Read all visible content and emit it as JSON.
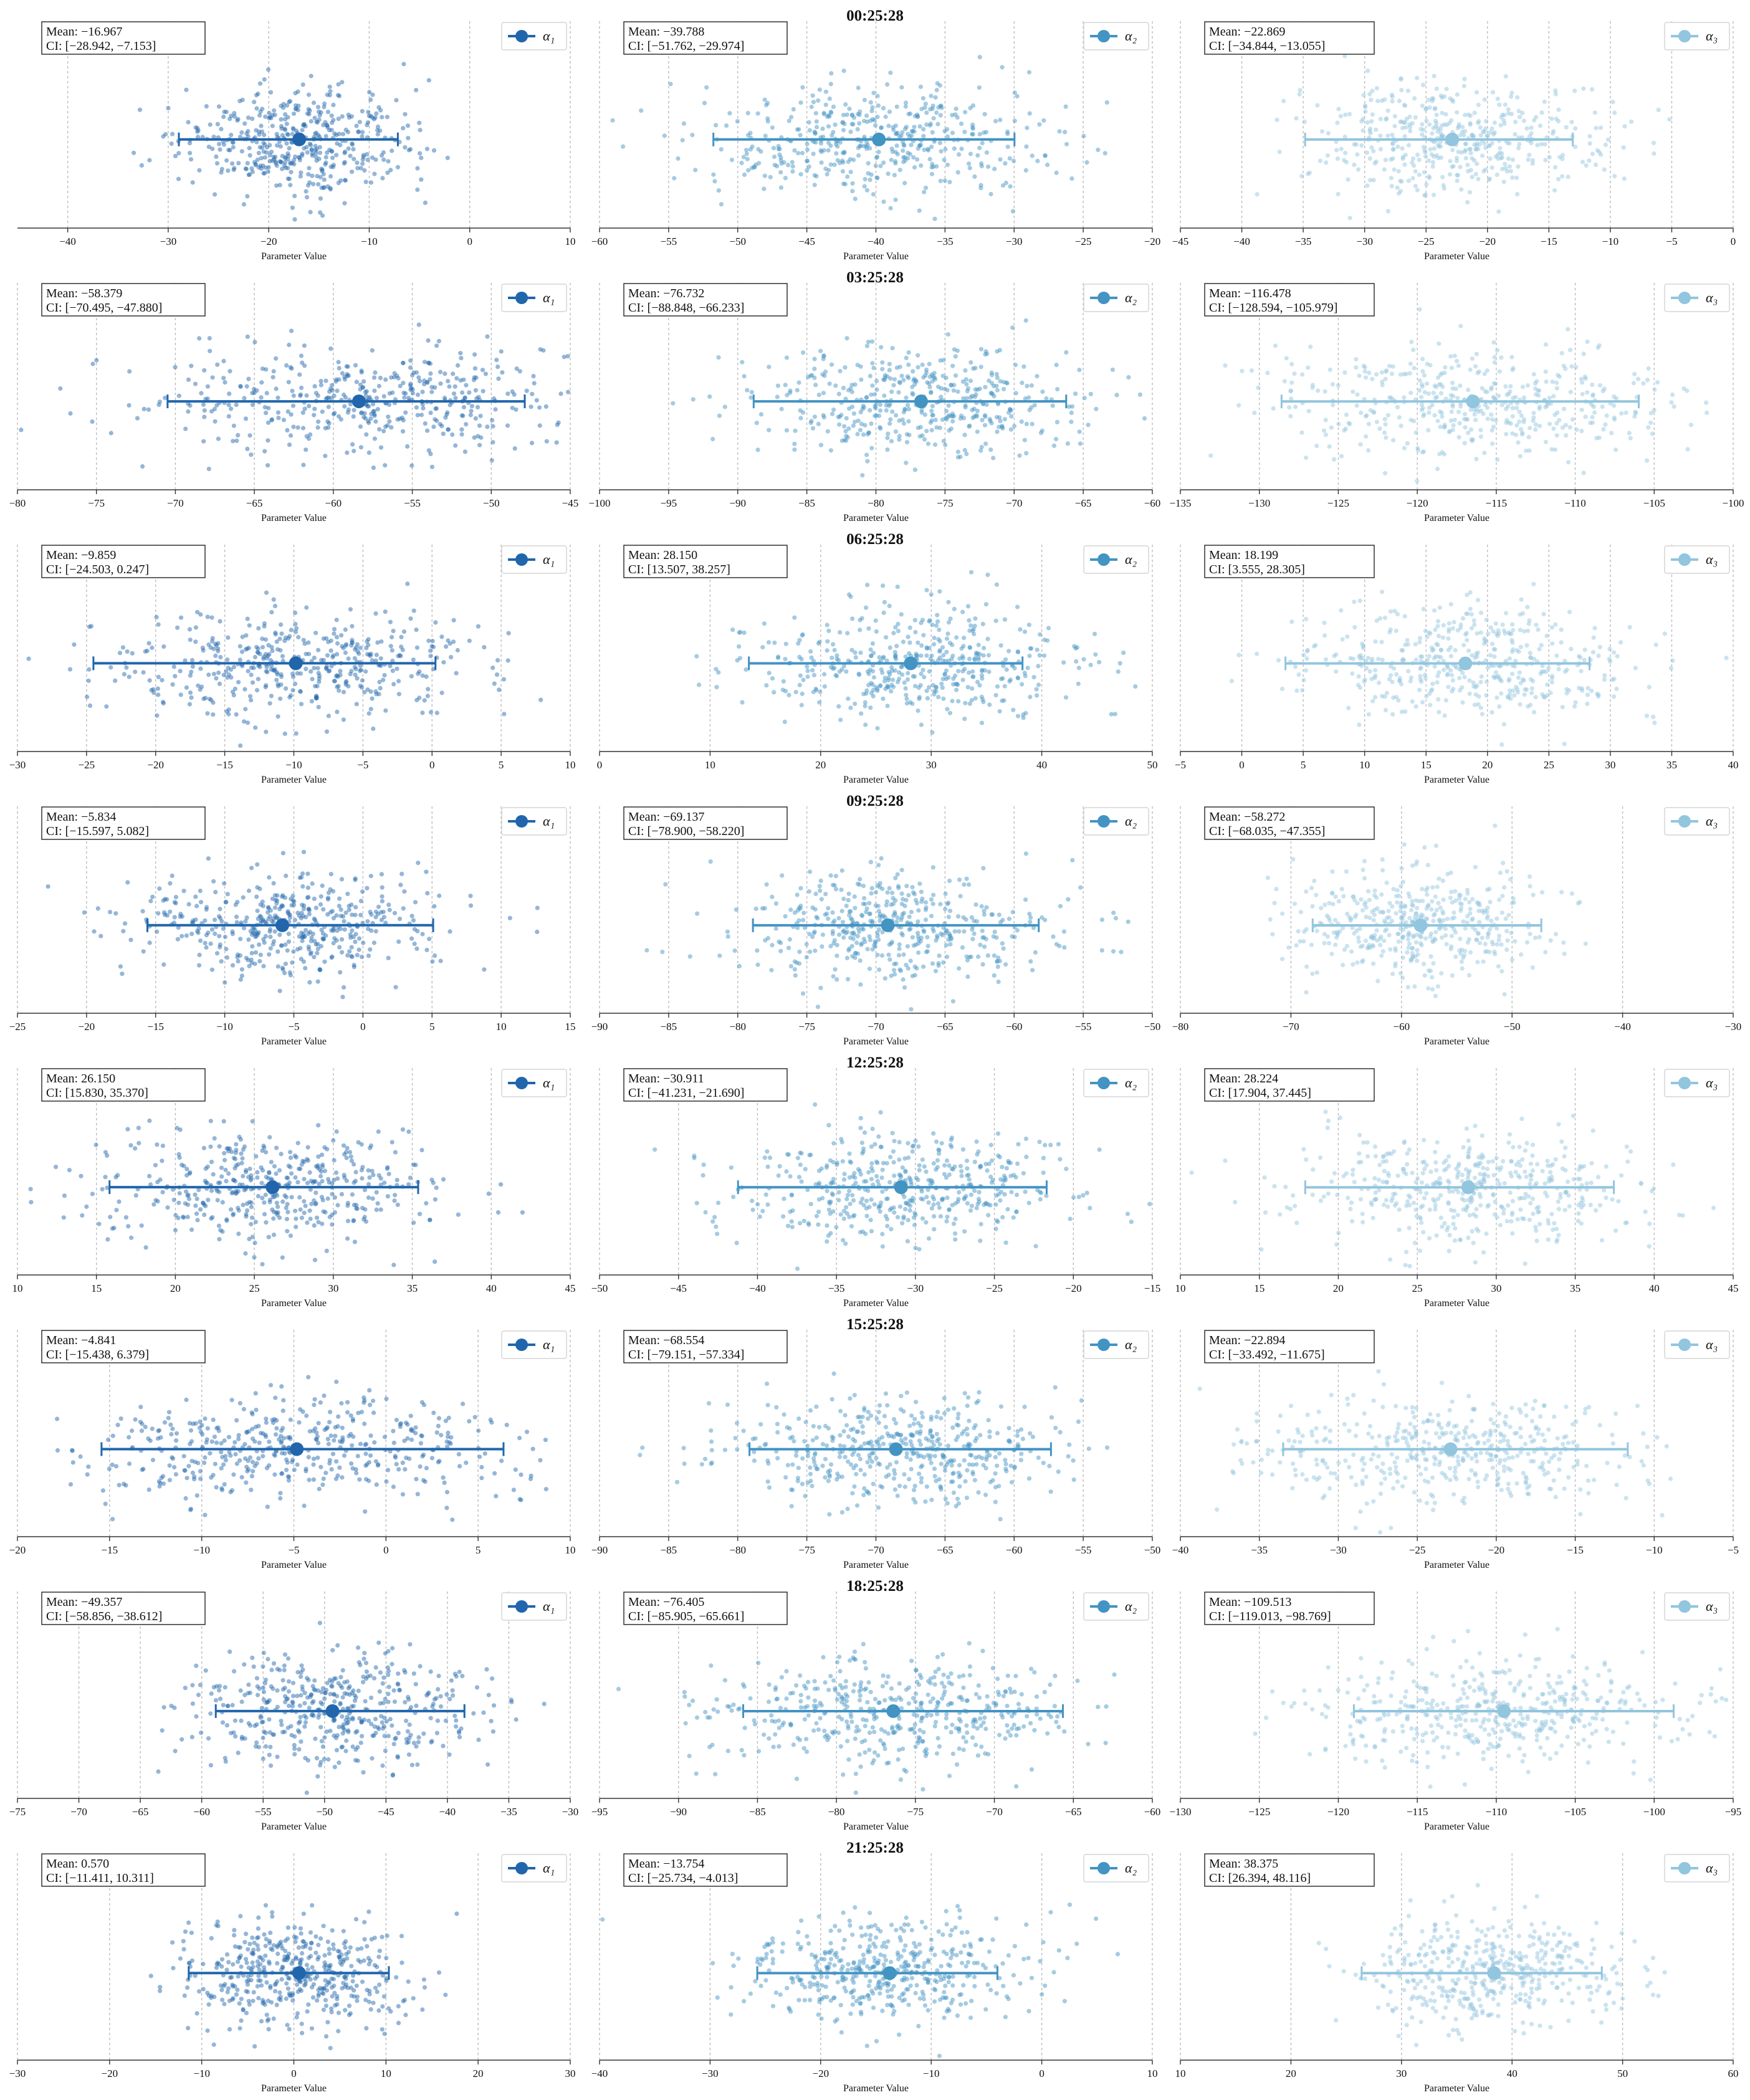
{
  "colors": {
    "alpha1": "#2166ac",
    "alpha2": "#4393c3",
    "alpha3": "#92c5de",
    "axis": "#333333",
    "grid": "#bdbdbd",
    "text": "#111111"
  },
  "labels": {
    "xlabel": "Parameter Value",
    "mean_prefix": "Mean: ",
    "ci_prefix": "CI: "
  },
  "legend_labels": [
    "α₁",
    "α₂",
    "α₃"
  ],
  "chart_data": [
    {
      "type": "scatter",
      "row_title": "00:25:28",
      "panels": [
        {
          "param": "α₁",
          "mean": "−16.967",
          "ci": "[−28.942, −7.153]",
          "mean_value": -16.967,
          "ci_value": [
            -28.942,
            -7.153
          ],
          "xlim": [
            -45,
            10
          ],
          "ticks": [
            -40,
            -30,
            -20,
            -10,
            0,
            10
          ]
        },
        {
          "param": "α₂",
          "mean": "−39.788",
          "ci": "[−51.762, −29.974]",
          "mean_value": -39.788,
          "ci_value": [
            -51.762,
            -29.974
          ],
          "xlim": [
            -60,
            -20
          ],
          "ticks": [
            -60,
            -55,
            -50,
            -45,
            -40,
            -35,
            -30,
            -25,
            -20
          ]
        },
        {
          "param": "α₃",
          "mean": "−22.869",
          "ci": "[−34.844, −13.055]",
          "mean_value": -22.869,
          "ci_value": [
            -34.844,
            -13.055
          ],
          "xlim": [
            -45,
            0
          ],
          "ticks": [
            -45,
            -40,
            -35,
            -30,
            -25,
            -20,
            -15,
            -10,
            -5,
            0
          ]
        }
      ]
    },
    {
      "type": "scatter",
      "row_title": "03:25:28",
      "panels": [
        {
          "param": "α₁",
          "mean": "−58.379",
          "ci": "[−70.495, −47.880]",
          "mean_value": -58.379,
          "ci_value": [
            -70.495,
            -47.88
          ],
          "xlim": [
            -80,
            -45
          ],
          "ticks": [
            -80,
            -75,
            -70,
            -65,
            -60,
            -55,
            -50,
            -45
          ]
        },
        {
          "param": "α₂",
          "mean": "−76.732",
          "ci": "[−88.848, −66.233]",
          "mean_value": -76.732,
          "ci_value": [
            -88.848,
            -66.233
          ],
          "xlim": [
            -100,
            -60
          ],
          "ticks": [
            -100,
            -95,
            -90,
            -85,
            -80,
            -75,
            -70,
            -65,
            -60
          ]
        },
        {
          "param": "α₃",
          "mean": "−116.478",
          "ci": "[−128.594, −105.979]",
          "mean_value": -116.478,
          "ci_value": [
            -128.594,
            -105.979
          ],
          "xlim": [
            -135,
            -100
          ],
          "ticks": [
            -135,
            -130,
            -125,
            -120,
            -115,
            -110,
            -105,
            -100
          ]
        }
      ]
    },
    {
      "type": "scatter",
      "row_title": "06:25:28",
      "panels": [
        {
          "param": "α₁",
          "mean": "−9.859",
          "ci": "[−24.503, 0.247]",
          "mean_value": -9.859,
          "ci_value": [
            -24.503,
            0.247
          ],
          "xlim": [
            -30,
            10
          ],
          "ticks": [
            -30,
            -25,
            -20,
            -15,
            -10,
            -5,
            0,
            5,
            10
          ]
        },
        {
          "param": "α₂",
          "mean": "28.150",
          "ci": "[13.507, 38.257]",
          "mean_value": 28.15,
          "ci_value": [
            13.507,
            38.257
          ],
          "xlim": [
            0,
            50
          ],
          "ticks": [
            0,
            10,
            20,
            30,
            40,
            50
          ]
        },
        {
          "param": "α₃",
          "mean": "18.199",
          "ci": "[3.555, 28.305]",
          "mean_value": 18.199,
          "ci_value": [
            3.555,
            28.305
          ],
          "xlim": [
            -5,
            40
          ],
          "ticks": [
            -5,
            0,
            5,
            10,
            15,
            20,
            25,
            30,
            35,
            40
          ]
        }
      ]
    },
    {
      "type": "scatter",
      "row_title": "09:25:28",
      "panels": [
        {
          "param": "α₁",
          "mean": "−5.834",
          "ci": "[−15.597, 5.082]",
          "mean_value": -5.834,
          "ci_value": [
            -15.597,
            5.082
          ],
          "xlim": [
            -25,
            15
          ],
          "ticks": [
            -25,
            -20,
            -15,
            -10,
            -5,
            0,
            5,
            10,
            15
          ]
        },
        {
          "param": "α₂",
          "mean": "−69.137",
          "ci": "[−78.900, −58.220]",
          "mean_value": -69.137,
          "ci_value": [
            -78.9,
            -58.22
          ],
          "xlim": [
            -90,
            -50
          ],
          "ticks": [
            -90,
            -85,
            -80,
            -75,
            -70,
            -65,
            -60,
            -55,
            -50
          ]
        },
        {
          "param": "α₃",
          "mean": "−58.272",
          "ci": "[−68.035, −47.355]",
          "mean_value": -58.272,
          "ci_value": [
            -68.035,
            -47.355
          ],
          "xlim": [
            -80,
            -30
          ],
          "ticks": [
            -80,
            -70,
            -60,
            -50,
            -40,
            -30
          ]
        }
      ]
    },
    {
      "type": "scatter",
      "row_title": "12:25:28",
      "panels": [
        {
          "param": "α₁",
          "mean": "26.150",
          "ci": "[15.830, 35.370]",
          "mean_value": 26.15,
          "ci_value": [
            15.83,
            35.37
          ],
          "xlim": [
            10,
            45
          ],
          "ticks": [
            10,
            15,
            20,
            25,
            30,
            35,
            40,
            45
          ]
        },
        {
          "param": "α₂",
          "mean": "−30.911",
          "ci": "[−41.231, −21.690]",
          "mean_value": -30.911,
          "ci_value": [
            -41.231,
            -21.69
          ],
          "xlim": [
            -50,
            -15
          ],
          "ticks": [
            -50,
            -45,
            -40,
            -35,
            -30,
            -25,
            -20,
            -15
          ]
        },
        {
          "param": "α₃",
          "mean": "28.224",
          "ci": "[17.904, 37.445]",
          "mean_value": 28.224,
          "ci_value": [
            17.904,
            37.445
          ],
          "xlim": [
            10,
            45
          ],
          "ticks": [
            10,
            15,
            20,
            25,
            30,
            35,
            40,
            45
          ]
        }
      ]
    },
    {
      "type": "scatter",
      "row_title": "15:25:28",
      "panels": [
        {
          "param": "α₁",
          "mean": "−4.841",
          "ci": "[−15.438, 6.379]",
          "mean_value": -4.841,
          "ci_value": [
            -15.438,
            6.379
          ],
          "xlim": [
            -20,
            10
          ],
          "ticks": [
            -20,
            -15,
            -10,
            -5,
            0,
            5,
            10
          ]
        },
        {
          "param": "α₂",
          "mean": "−68.554",
          "ci": "[−79.151, −57.334]",
          "mean_value": -68.554,
          "ci_value": [
            -79.151,
            -57.334
          ],
          "xlim": [
            -90,
            -50
          ],
          "ticks": [
            -90,
            -85,
            -80,
            -75,
            -70,
            -65,
            -60,
            -55,
            -50
          ]
        },
        {
          "param": "α₃",
          "mean": "−22.894",
          "ci": "[−33.492, −11.675]",
          "mean_value": -22.894,
          "ci_value": [
            -33.492,
            -11.675
          ],
          "xlim": [
            -40,
            -5
          ],
          "ticks": [
            -40,
            -35,
            -30,
            -25,
            -20,
            -15,
            -10,
            -5
          ]
        }
      ]
    },
    {
      "type": "scatter",
      "row_title": "18:25:28",
      "panels": [
        {
          "param": "α₁",
          "mean": "−49.357",
          "ci": "[−58.856, −38.612]",
          "mean_value": -49.357,
          "ci_value": [
            -58.856,
            -38.612
          ],
          "xlim": [
            -75,
            -30
          ],
          "ticks": [
            -75,
            -70,
            -65,
            -60,
            -55,
            -50,
            -45,
            -40,
            -35,
            -30
          ]
        },
        {
          "param": "α₂",
          "mean": "−76.405",
          "ci": "[−85.905, −65.661]",
          "mean_value": -76.405,
          "ci_value": [
            -85.905,
            -65.661
          ],
          "xlim": [
            -95,
            -60
          ],
          "ticks": [
            -95,
            -90,
            -85,
            -80,
            -75,
            -70,
            -65,
            -60
          ]
        },
        {
          "param": "α₃",
          "mean": "−109.513",
          "ci": "[−119.013, −98.769]",
          "mean_value": -109.513,
          "ci_value": [
            -119.013,
            -98.769
          ],
          "xlim": [
            -130,
            -95
          ],
          "ticks": [
            -130,
            -125,
            -120,
            -115,
            -110,
            -105,
            -100,
            -95
          ]
        }
      ]
    },
    {
      "type": "scatter",
      "row_title": "21:25:28",
      "panels": [
        {
          "param": "α₁",
          "mean": "0.570",
          "ci": "[−11.411, 10.311]",
          "mean_value": 0.57,
          "ci_value": [
            -11.411,
            10.311
          ],
          "xlim": [
            -30,
            30
          ],
          "ticks": [
            -30,
            -20,
            -10,
            0,
            10,
            20,
            30
          ]
        },
        {
          "param": "α₂",
          "mean": "−13.754",
          "ci": "[−25.734, −4.013]",
          "mean_value": -13.754,
          "ci_value": [
            -25.734,
            -4.013
          ],
          "xlim": [
            -40,
            10
          ],
          "ticks": [
            -40,
            -30,
            -20,
            -10,
            0,
            10
          ]
        },
        {
          "param": "α₃",
          "mean": "38.375",
          "ci": "[26.394, 48.116]",
          "mean_value": 38.375,
          "ci_value": [
            26.394,
            48.116
          ],
          "xlim": [
            10,
            60
          ],
          "ticks": [
            10,
            20,
            30,
            40,
            50,
            60
          ]
        }
      ]
    }
  ]
}
